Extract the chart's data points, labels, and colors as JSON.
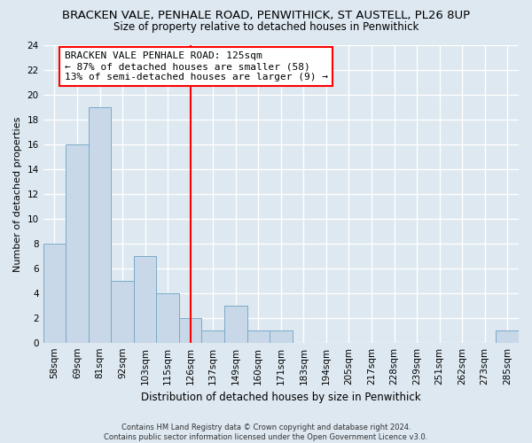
{
  "title_line1": "BRACKEN VALE, PENHALE ROAD, PENWITHICK, ST AUSTELL, PL26 8UP",
  "title_line2": "Size of property relative to detached houses in Penwithick",
  "xlabel": "Distribution of detached houses by size in Penwithick",
  "ylabel": "Number of detached properties",
  "bin_labels": [
    "58sqm",
    "69sqm",
    "81sqm",
    "92sqm",
    "103sqm",
    "115sqm",
    "126sqm",
    "137sqm",
    "149sqm",
    "160sqm",
    "171sqm",
    "183sqm",
    "194sqm",
    "205sqm",
    "217sqm",
    "228sqm",
    "239sqm",
    "251sqm",
    "262sqm",
    "273sqm",
    "285sqm"
  ],
  "bar_heights": [
    8,
    16,
    19,
    5,
    7,
    4,
    2,
    1,
    3,
    1,
    1,
    0,
    0,
    0,
    0,
    0,
    0,
    0,
    0,
    0,
    1
  ],
  "bar_color": "#c8d8e8",
  "bar_edge_color": "#7aaac8",
  "vline_x_index": 6,
  "vline_color": "red",
  "annotation_text": "BRACKEN VALE PENHALE ROAD: 125sqm\n← 87% of detached houses are smaller (58)\n13% of semi-detached houses are larger (9) →",
  "annotation_box_color": "white",
  "annotation_box_edge_color": "red",
  "ylim": [
    0,
    24
  ],
  "yticks": [
    0,
    2,
    4,
    6,
    8,
    10,
    12,
    14,
    16,
    18,
    20,
    22,
    24
  ],
  "footer_text": "Contains HM Land Registry data © Crown copyright and database right 2024.\nContains public sector information licensed under the Open Government Licence v3.0.",
  "bg_color": "#dde8f0",
  "plot_bg_color": "#dde8f0",
  "grid_color": "white",
  "title1_fontsize": 9.5,
  "title2_fontsize": 8.5,
  "xlabel_fontsize": 8.5,
  "ylabel_fontsize": 8.0,
  "tick_fontsize": 7.5,
  "annotation_fontsize": 8.0,
  "footer_fontsize": 6.0
}
